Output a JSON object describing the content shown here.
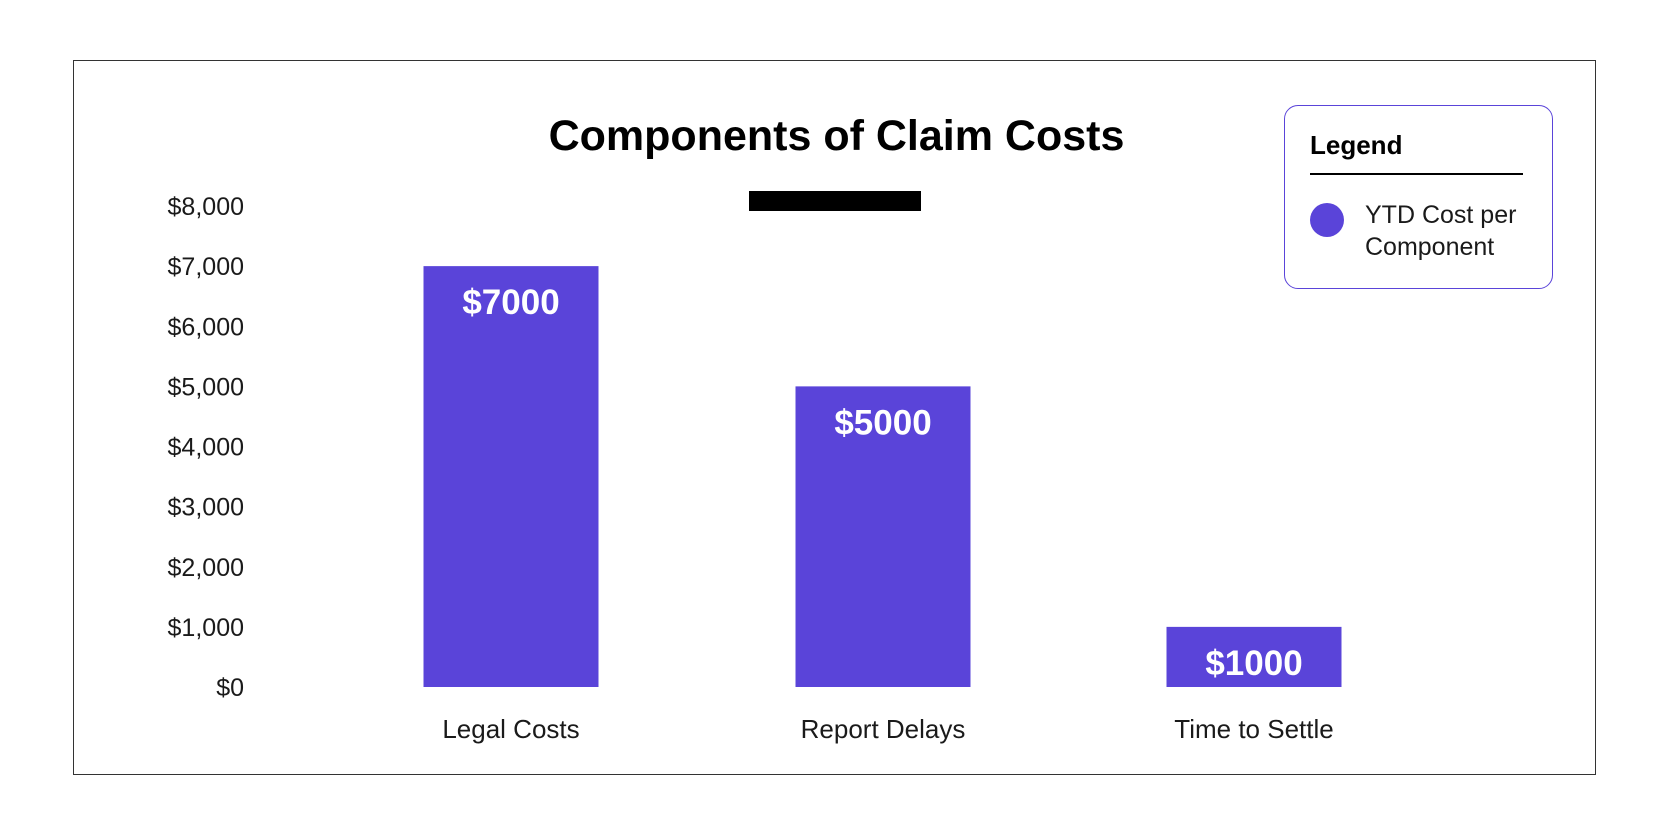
{
  "chart_data": {
    "type": "bar",
    "title": "Components of Claim Costs",
    "xlabel": "",
    "ylabel": "",
    "categories": [
      "Legal Costs",
      "Report Delays",
      "Time to Settle"
    ],
    "series": [
      {
        "name": "YTD Cost per Component",
        "values": [
          7000,
          5000,
          1000
        ],
        "data_labels": [
          "$7000",
          "$5000",
          "$1000"
        ]
      }
    ],
    "ylim": [
      0,
      8000
    ],
    "yticks": [
      0,
      1000,
      2000,
      3000,
      4000,
      5000,
      6000,
      7000,
      8000
    ],
    "ytick_labels": [
      "$0",
      "$1,000",
      "$2,000",
      "$3,000",
      "$4,000",
      "$5,000",
      "$6,000",
      "$7,000",
      "$8,000"
    ],
    "grid": false,
    "legend_position": "top-right",
    "colors": {
      "bar": "#5a44d9",
      "legend_border": "#5a44d9",
      "frame": "#333333"
    }
  },
  "legend": {
    "title": "Legend",
    "items": [
      {
        "label": "YTD Cost per Component"
      }
    ]
  }
}
